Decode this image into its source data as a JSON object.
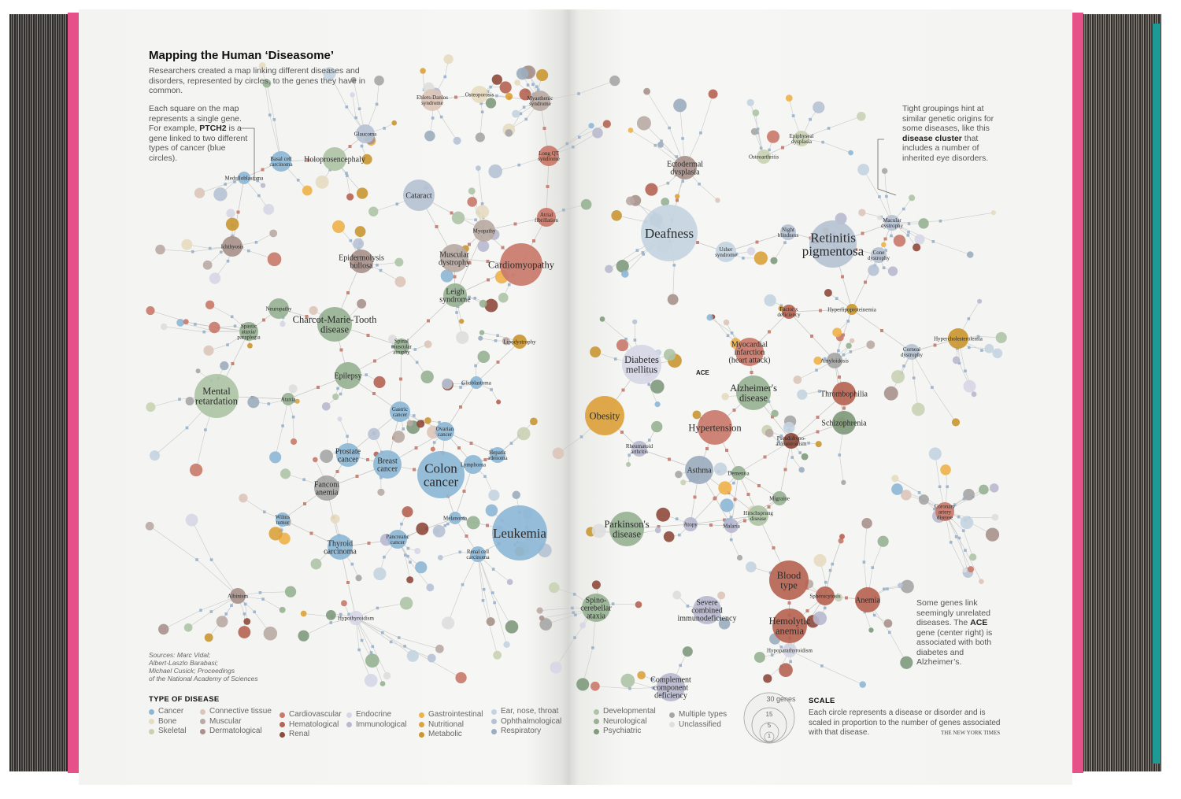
{
  "title": "Mapping the Human ‘Diseasome’",
  "intro": "Researchers created a map linking different diseases and disorders, represented by circles, to the genes they have in common.",
  "gene_note": {
    "before": "Each square on the map represents a single gene. For example, ",
    "gene": "PTCH2",
    "after": " is a gene linked to two different types of cancer (blue circles)."
  },
  "cluster_note": {
    "before": "Tight groupings hint at similar genetic origins for some diseases, like this ",
    "bold": "disease cluster",
    "after": " that includes a number of inherited eye disorders."
  },
  "ace_note": {
    "before": "Some genes link seemingly unrelated diseases. The ",
    "bold": "ACE",
    "after": " gene (center right) is associated with both diabetes and Alzheimer’s."
  },
  "sources": [
    "Sources: Marc Vidal;",
    "Albert-Laszlo Barabasi;",
    "Michael Cusick; Proceedings",
    "of the National Academy of Sciences"
  ],
  "legend": {
    "title": "TYPE OF DISEASE",
    "columns": [
      [
        {
          "label": "Cancer",
          "color": "#8db7d6"
        },
        {
          "label": "Bone",
          "color": "#e6dcc0"
        },
        {
          "label": "Skeletal",
          "color": "#c9d1b4"
        }
      ],
      [
        {
          "label": "Connective tissue",
          "color": "#dcc5b8"
        },
        {
          "label": "Muscular",
          "color": "#b9aaa3"
        },
        {
          "label": "Dermatological",
          "color": "#a8928c"
        }
      ],
      [
        {
          "label": "Cardiovascular",
          "color": "#c9796a"
        },
        {
          "label": "Hematological",
          "color": "#b66453"
        },
        {
          "label": "Renal",
          "color": "#8e4a3c"
        }
      ],
      [
        {
          "label": "Endocrine",
          "color": "#d6d6e6"
        },
        {
          "label": "Immunological",
          "color": "#b9b9cf"
        }
      ],
      [
        {
          "label": "Gastrointestinal",
          "color": "#eeb24a"
        },
        {
          "label": "Nutritional",
          "color": "#dca23c"
        },
        {
          "label": "Metabolic",
          "color": "#c99732"
        }
      ],
      [
        {
          "label": "Ear, nose, throat",
          "color": "#c3d4e0"
        },
        {
          "label": "Ophthalmological",
          "color": "#b6c2d4"
        },
        {
          "label": "Respiratory",
          "color": "#9cadbe"
        }
      ],
      [
        {
          "label": "Developmental",
          "color": "#aec4a6"
        },
        {
          "label": "Neurological",
          "color": "#97b192"
        },
        {
          "label": "Psychiatric",
          "color": "#7f9a7d"
        }
      ],
      [
        {
          "label": "Multiple types",
          "color": "#a6a6a6"
        },
        {
          "label": "Unclassified",
          "color": "#dedede"
        }
      ]
    ]
  },
  "scale": {
    "title": "SCALE",
    "text": "Each circle represents a disease or disorder and is scaled in proportion to the number of genes associated with that disease.",
    "sizes": [
      "30 genes",
      "15",
      "5",
      "1"
    ]
  },
  "credit": "THE NEW YORK TIMES",
  "ace_label": "ACE",
  "network": {
    "nodes": [
      {
        "label": "Deafness",
        "category": "Ear, nose, throat"
      },
      {
        "label": "Retinitis\npigmentosa",
        "category": "Ophthalmological"
      },
      {
        "label": "Leukemia",
        "category": "Cancer"
      },
      {
        "label": "Colon\ncancer",
        "category": "Cancer"
      },
      {
        "label": "Breast\ncancer",
        "category": "Cancer"
      },
      {
        "label": "Prostate\ncancer",
        "category": "Cancer"
      },
      {
        "label": "Thyroid\ncarcinoma",
        "category": "Cancer"
      },
      {
        "label": "Gastric\ncancer",
        "category": "Cancer"
      },
      {
        "label": "Ovarian\ncancer",
        "category": "Cancer"
      },
      {
        "label": "Lymphoma",
        "category": "Cancer"
      },
      {
        "label": "Hepatic\nadenoma",
        "category": "Cancer"
      },
      {
        "label": "Pancreatic\ncancer",
        "category": "Cancer"
      },
      {
        "label": "Fanconi\nanemia",
        "category": "Multiple types"
      },
      {
        "label": "Mental\nretardation",
        "category": "Developmental"
      },
      {
        "label": "Epilepsy",
        "category": "Neurological"
      },
      {
        "label": "Charcot-Marie-Tooth\ndisease",
        "category": "Neurological"
      },
      {
        "label": "Cardiomyopathy",
        "category": "Cardiovascular"
      },
      {
        "label": "Myopathy",
        "category": "Muscular"
      },
      {
        "label": "Muscular\ndystrophy",
        "category": "Muscular"
      },
      {
        "label": "Leigh\nsyndrome",
        "category": "Neurological"
      },
      {
        "label": "Epidermolysis\nbullosa",
        "category": "Dermatological"
      },
      {
        "label": "Cataract",
        "category": "Ophthalmological"
      },
      {
        "label": "Holoprosencephaly",
        "category": "Developmental"
      },
      {
        "label": "Ehlers-Danlos\nsyndrome",
        "category": "Connective tissue"
      },
      {
        "label": "Osteoporosis",
        "category": "Bone"
      },
      {
        "label": "Diabetes\nmellitus",
        "category": "Endocrine"
      },
      {
        "label": "Obesity",
        "category": "Nutritional"
      },
      {
        "label": "Alzheimer's\ndisease",
        "category": "Neurological"
      },
      {
        "label": "Hypertension",
        "category": "Cardiovascular"
      },
      {
        "label": "Myocardial\ninfarction\n(heart attack)",
        "category": "Cardiovascular"
      },
      {
        "label": "Asthma",
        "category": "Respiratory"
      },
      {
        "label": "Parkinson's\ndisease",
        "category": "Neurological"
      },
      {
        "label": "Blood\ntype",
        "category": "Hematological"
      },
      {
        "label": "Hemolytic\nanemia",
        "category": "Hematological"
      },
      {
        "label": "Anemia",
        "category": "Hematological"
      },
      {
        "label": "Spherocytosis",
        "category": "Hematological"
      },
      {
        "label": "Spino-\ncerebellar\nataxia",
        "category": "Neurological"
      },
      {
        "label": "Severe\ncombined\nimmunodeficiency",
        "category": "Immunological"
      },
      {
        "label": "Complement\ncomponent\ndeficiency",
        "category": "Immunological"
      },
      {
        "label": "Hirschsprung\ndisease",
        "category": "Developmental"
      },
      {
        "label": "Thrombophilia",
        "category": "Hematological"
      },
      {
        "label": "Schizophrenia",
        "category": "Psychiatric"
      },
      {
        "label": "Amyloidosis",
        "category": "Multiple types"
      },
      {
        "label": "Hypercholesterolemia",
        "category": "Metabolic"
      },
      {
        "label": "Ectodermal\ndysplasia",
        "category": "Dermatological"
      },
      {
        "label": "Usher\nsyndrome",
        "category": "Ear, nose, throat"
      },
      {
        "label": "Epiphyseal\ndysplasia",
        "category": "Skeletal"
      },
      {
        "label": "Osteoarthritis",
        "category": "Skeletal"
      },
      {
        "label": "Pseudohypo-\naldosteronism",
        "category": "Renal"
      },
      {
        "label": "Dementia",
        "category": "Neurological"
      },
      {
        "label": "Migraine",
        "category": "Neurological"
      },
      {
        "label": "Malaria",
        "category": "Immunological"
      },
      {
        "label": "Atopy",
        "category": "Immunological"
      },
      {
        "label": "Rheumatoid\narthritis",
        "category": "Immunological"
      },
      {
        "label": "Corneal\ndystrophy",
        "category": "Ophthalmological"
      },
      {
        "label": "Lipodystrophy",
        "category": "Metabolic"
      },
      {
        "label": "Spinal\nmuscular\natrophy",
        "category": "Neurological"
      },
      {
        "label": "Hypothyroidism",
        "category": "Endocrine"
      },
      {
        "label": "Glioblastoma",
        "category": "Cancer"
      },
      {
        "label": "Melanoma",
        "category": "Cancer"
      },
      {
        "label": "Medulloblastoma",
        "category": "Cancer"
      },
      {
        "label": "Basal cell\ncarcinoma",
        "category": "Cancer"
      },
      {
        "label": "Glaucoma",
        "category": "Ophthalmological"
      },
      {
        "label": "Myasthenic\nsyndrome",
        "category": "Muscular"
      },
      {
        "label": "Long QT\nsyndrome",
        "category": "Cardiovascular"
      },
      {
        "label": "Atrial\nfibrillation",
        "category": "Cardiovascular"
      },
      {
        "label": "Ichthyosis",
        "category": "Dermatological"
      },
      {
        "label": "Neuropathy",
        "category": "Neurological"
      },
      {
        "label": "Spastic\nataxia/\nparaplegia",
        "category": "Neurological"
      },
      {
        "label": "Hyperlipoproteinemia",
        "category": "Metabolic"
      },
      {
        "label": "Macular\ndystrophy",
        "category": "Ophthalmological"
      },
      {
        "label": "Cone\ndystrophy",
        "category": "Ophthalmological"
      },
      {
        "label": "Night\nblindness",
        "category": "Ophthalmological"
      },
      {
        "label": "Renal cell\ncarcinoma",
        "category": "Cancer"
      },
      {
        "label": "Hypoparathyroidism",
        "category": "Endocrine"
      },
      {
        "label": "Factor x\ndeficiency",
        "category": "Hematological"
      },
      {
        "label": "Coronary\nartery\ndisease",
        "category": "Cardiovascular"
      },
      {
        "label": "Ataxia",
        "category": "Neurological"
      },
      {
        "label": "Albinism",
        "category": "Dermatological"
      },
      {
        "label": "Wilms\ntumor",
        "category": "Cancer"
      }
    ]
  }
}
